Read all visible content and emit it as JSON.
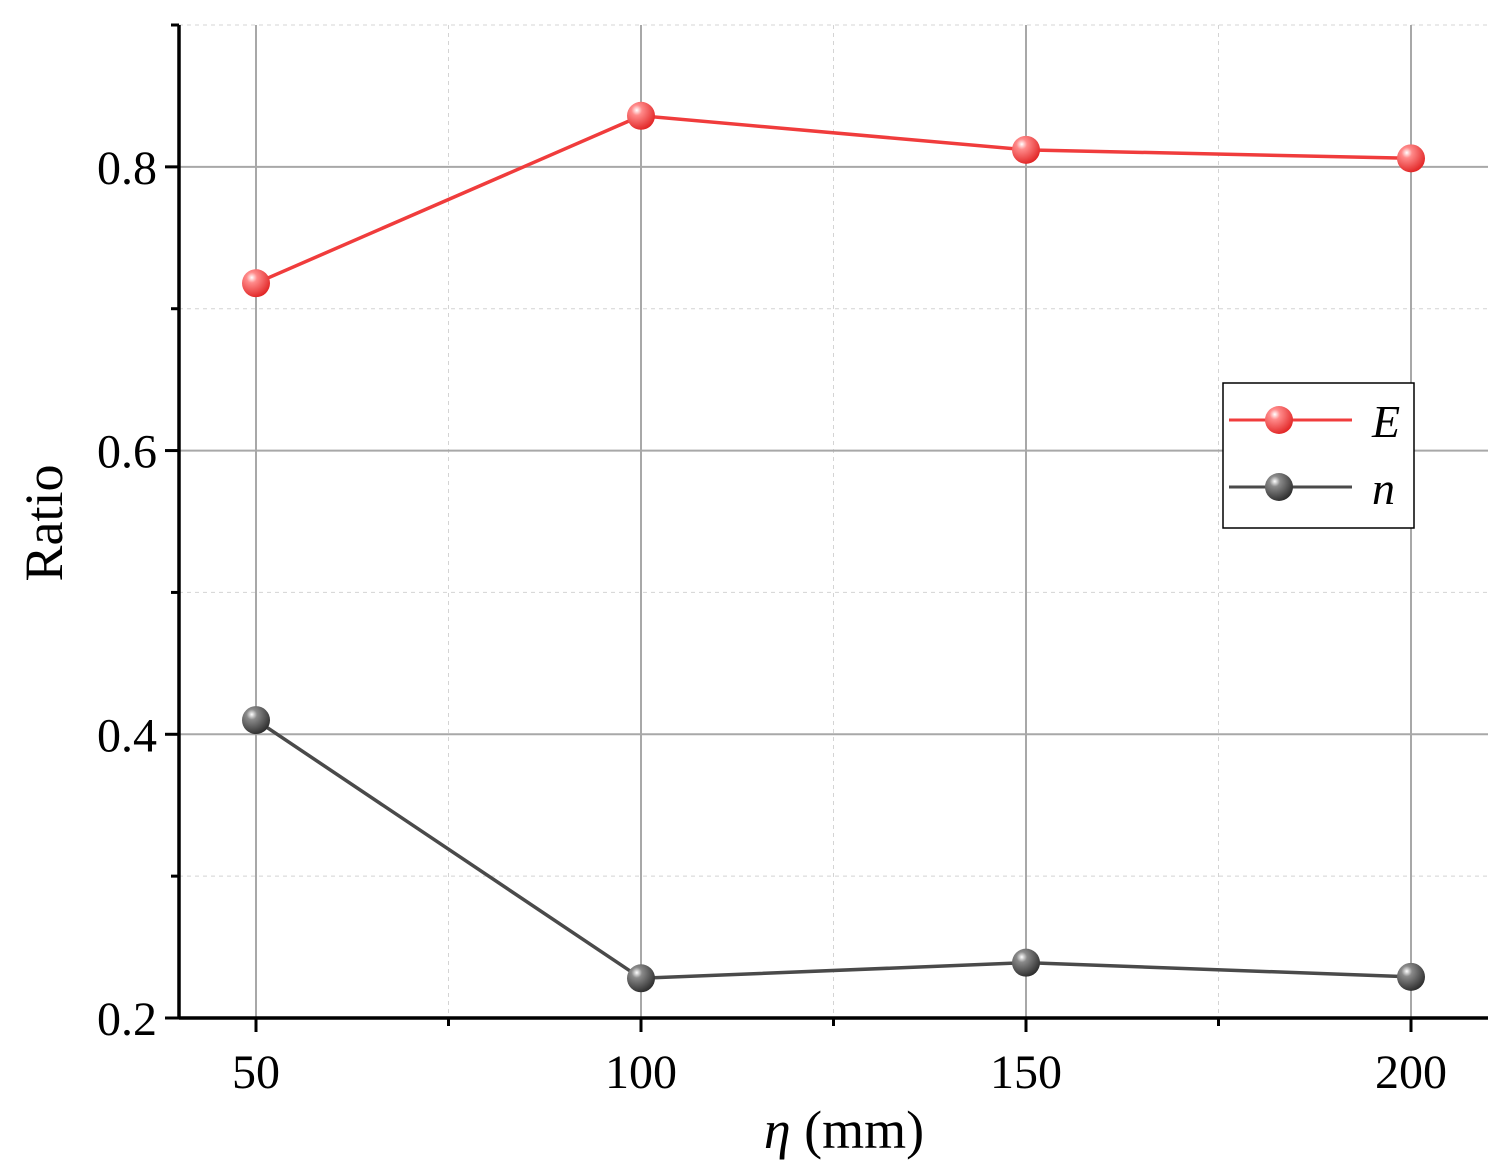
{
  "chart_data": {
    "type": "line",
    "xlabel_symbol": "η",
    "xlabel_unit": " (mm)",
    "ylabel": "Ratio",
    "x": [
      50,
      100,
      150,
      200
    ],
    "xlim": [
      40,
      210
    ],
    "ylim": [
      0.2,
      0.9
    ],
    "xticks": [
      50,
      100,
      150,
      200
    ],
    "xtick_labels": [
      "50",
      "100",
      "150",
      "200"
    ],
    "yticks": [
      0.2,
      0.4,
      0.6,
      0.8
    ],
    "ytick_labels": [
      "0.2",
      "0.4",
      "0.6",
      "0.8"
    ],
    "grid": true,
    "legend_position": "right",
    "series": [
      {
        "name": "E",
        "values": [
          0.718,
          0.836,
          0.812,
          0.806
        ],
        "color": "#f03c3c"
      },
      {
        "name": "n",
        "values": [
          0.41,
          0.228,
          0.239,
          0.229
        ],
        "color": "#4a4a4a"
      }
    ]
  }
}
